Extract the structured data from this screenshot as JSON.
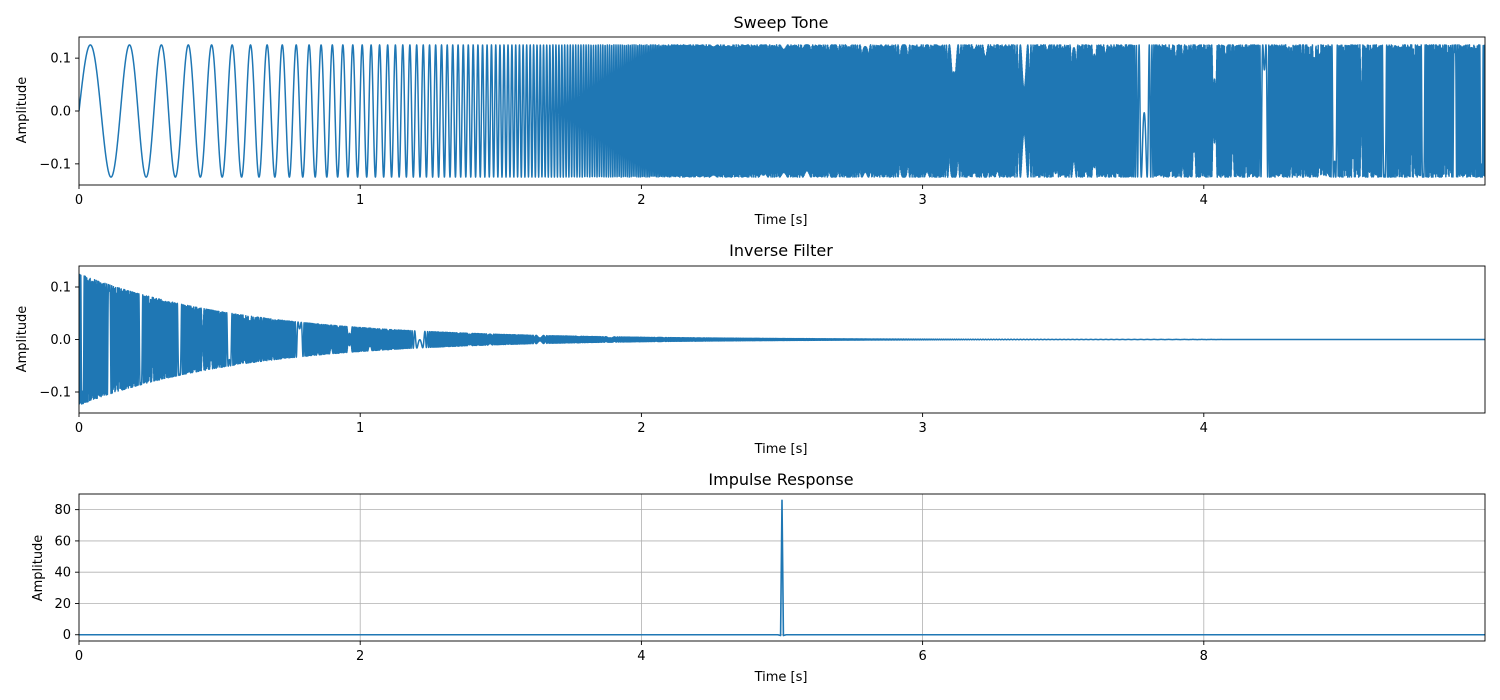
{
  "colors": {
    "line": "#1f77b4",
    "grid": "#b0b0b0",
    "axis": "#000000"
  },
  "chart_data": [
    {
      "type": "line",
      "title": "Sweep Tone",
      "xlabel": "Time [s]",
      "ylabel": "Amplitude",
      "xlim": [
        0,
        5.0
      ],
      "ylim": [
        -0.14,
        0.14
      ],
      "grid": false,
      "xticks": [
        0,
        1,
        2,
        3,
        4
      ],
      "xtick_labels": [
        "0",
        "1",
        "2",
        "3",
        "4"
      ],
      "yticks": [
        0.1,
        0.0,
        -0.1
      ],
      "ytick_labels": [
        "0.1",
        "0.0",
        "−0.1"
      ],
      "signal": {
        "kind": "exponential sine sweep",
        "amplitude": 0.125,
        "duration": 5.0
      }
    },
    {
      "type": "line",
      "title": "Inverse Filter",
      "xlabel": "Time [s]",
      "ylabel": "Amplitude",
      "xlim": [
        0,
        5.0
      ],
      "ylim": [
        -0.14,
        0.14
      ],
      "grid": false,
      "xticks": [
        0,
        1,
        2,
        3,
        4
      ],
      "xtick_labels": [
        "0",
        "1",
        "2",
        "3",
        "4"
      ],
      "yticks": [
        0.1,
        0.0,
        -0.1
      ],
      "ytick_labels": [
        "0.1",
        "0.0",
        "−0.1"
      ],
      "signal": {
        "kind": "exponentially decaying sweep",
        "start_amplitude": 0.125,
        "duration": 5.0
      }
    },
    {
      "type": "line",
      "title": "Impulse Response",
      "xlabel": "Time [s]",
      "ylabel": "Amplitude",
      "xlim": [
        0,
        10.0
      ],
      "ylim": [
        -4,
        90
      ],
      "grid": true,
      "xticks": [
        0,
        2,
        4,
        6,
        8
      ],
      "xtick_labels": [
        "0",
        "2",
        "4",
        "6",
        "8"
      ],
      "yticks": [
        80,
        60,
        40,
        20,
        0
      ],
      "ytick_labels": [
        "80",
        "60",
        "40",
        "20",
        "0"
      ],
      "x": [
        0,
        4.97,
        4.99,
        5.0,
        5.01,
        5.03,
        10.0
      ],
      "y": [
        0,
        0,
        -0.5,
        86,
        -0.5,
        0,
        0
      ]
    }
  ]
}
